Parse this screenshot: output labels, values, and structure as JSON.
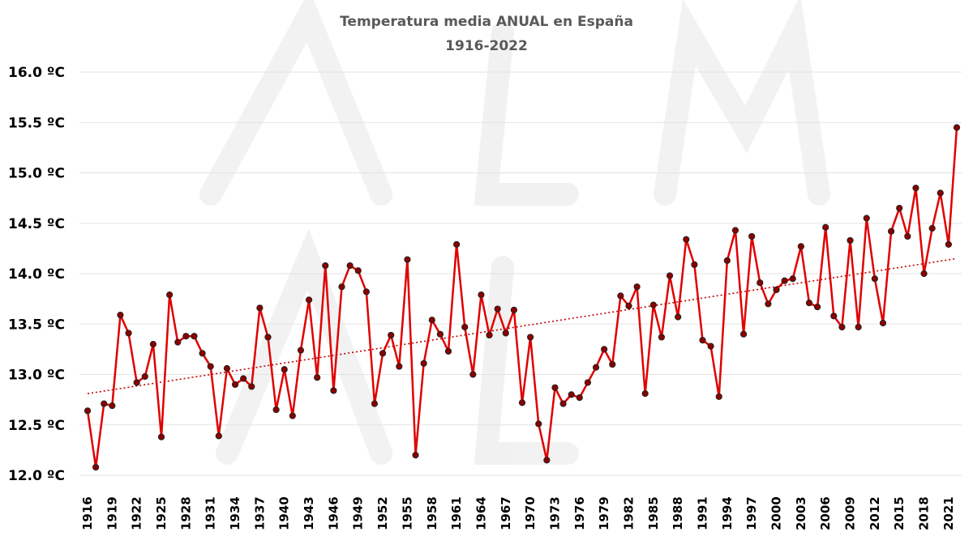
{
  "chart_data": {
    "type": "line",
    "title": "Temperatura media ANUAL en España",
    "subtitle": "1916-2022",
    "xlabel": "",
    "ylabel": "",
    "ylim": [
      12.0,
      16.0
    ],
    "xlim": [
      1916,
      2022
    ],
    "grid": true,
    "y_ticks": [
      "12.0 ºC",
      "12.5 ºC",
      "13.0 ºC",
      "13.5 ºC",
      "14.0 ºC",
      "14.5 ºC",
      "15.0 ºC",
      "15.5 ºC",
      "16.0 ºC"
    ],
    "x_ticks": [
      "1916",
      "1919",
      "1922",
      "1925",
      "1928",
      "1931",
      "1934",
      "1937",
      "1940",
      "1943",
      "1946",
      "1949",
      "1952",
      "1955",
      "1958",
      "1961",
      "1964",
      "1967",
      "1970",
      "1973",
      "1976",
      "1979",
      "1982",
      "1985",
      "1988",
      "1991",
      "1994",
      "1997",
      "2000",
      "2003",
      "2006",
      "2009",
      "2012",
      "2015",
      "2018",
      "2021"
    ],
    "series": [
      {
        "name": "Temperatura media anual",
        "color": "#e00000",
        "marker_color": "#8b0000",
        "x_start": 1916,
        "values": [
          12.64,
          12.08,
          12.71,
          12.69,
          13.59,
          13.41,
          12.92,
          12.98,
          13.3,
          12.38,
          13.79,
          13.32,
          13.38,
          13.38,
          13.21,
          13.08,
          12.39,
          13.06,
          12.9,
          12.96,
          12.88,
          13.66,
          13.37,
          12.65,
          13.05,
          12.59,
          13.24,
          13.74,
          12.97,
          14.08,
          12.84,
          13.87,
          14.08,
          14.03,
          13.82,
          12.71,
          13.21,
          13.39,
          13.08,
          14.14,
          12.2,
          13.11,
          13.54,
          13.4,
          13.23,
          14.29,
          13.47,
          13.0,
          13.79,
          13.39,
          13.65,
          13.41,
          13.64,
          12.72,
          13.37,
          12.51,
          12.15,
          12.87,
          12.71,
          12.8,
          12.77,
          12.92,
          13.07,
          13.25,
          13.1,
          13.78,
          13.68,
          13.87,
          12.81,
          13.69,
          13.37,
          13.98,
          13.57,
          14.34,
          14.09,
          13.34,
          13.28,
          12.78,
          14.13,
          14.43,
          13.4,
          14.37,
          13.91,
          13.7,
          13.84,
          13.93,
          13.95,
          14.27,
          13.71,
          13.67,
          14.46,
          13.58,
          13.47,
          14.33,
          13.47,
          14.55,
          13.95,
          13.51,
          14.42,
          14.65,
          14.37,
          14.85,
          14.0,
          14.45,
          14.8,
          14.29,
          15.45
        ]
      }
    ],
    "trendline": {
      "type": "linear",
      "style": "dotted",
      "color": "#c00000",
      "start": [
        1916,
        12.81
      ],
      "end": [
        2022,
        14.15
      ]
    },
    "legend": "none"
  }
}
